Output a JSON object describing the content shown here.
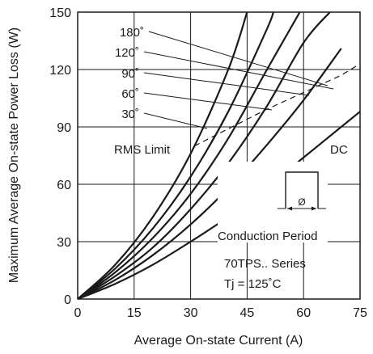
{
  "chart_data": {
    "type": "line",
    "xlabel": "Average On-state Current (A)",
    "ylabel": "Maximum Average On-state Power Loss (W)",
    "xlim": [
      0,
      75
    ],
    "ylim": [
      0,
      150
    ],
    "xticks": [
      0,
      15,
      30,
      45,
      60,
      75
    ],
    "yticks": [
      0,
      30,
      60,
      90,
      120,
      150
    ],
    "grid": true,
    "series": [
      {
        "name": "180°",
        "x": [
          0,
          10,
          20,
          30,
          40,
          45
        ],
        "y": [
          0,
          18,
          43,
          76,
          120,
          150
        ]
      },
      {
        "name": "120°",
        "x": [
          0,
          10,
          20,
          30,
          40,
          50,
          52
        ],
        "y": [
          0,
          16,
          37,
          64,
          98,
          140,
          150
        ]
      },
      {
        "name": "90°",
        "x": [
          0,
          10,
          20,
          30,
          40,
          50,
          59
        ],
        "y": [
          0,
          14,
          32,
          55,
          84,
          119,
          150
        ]
      },
      {
        "name": "60°",
        "x": [
          0,
          10,
          20,
          30,
          40,
          50,
          60,
          67
        ],
        "y": [
          0,
          12,
          27,
          47,
          71,
          100,
          134,
          150
        ]
      },
      {
        "name": "30°",
        "x": [
          0,
          10,
          20,
          30,
          40,
          50,
          60,
          70,
          75
        ],
        "y": [
          0,
          10,
          23,
          39,
          58,
          80,
          104,
          131,
          123
        ]
      },
      {
        "name": "DC",
        "x": [
          0,
          10,
          20,
          30,
          40,
          50,
          60,
          70,
          75
        ],
        "y": [
          0,
          8,
          18,
          30,
          43,
          58,
          74,
          90,
          98
        ]
      },
      {
        "name": "RMS Limit",
        "x": [
          31,
          40,
          50,
          60,
          70,
          75
        ],
        "y": [
          80,
          89,
          99,
          108,
          117,
          123
        ]
      }
    ],
    "annotations": {
      "rms_limit": "RMS Limit",
      "dc": "DC",
      "conduction_period": "Conduction Period",
      "phi": "Ø",
      "series_name": "70TPS.. Series",
      "tj": "Tj = 125˚C",
      "angle_labels": [
        "180˚",
        "120˚",
        "90˚",
        "60˚",
        "30˚"
      ]
    }
  }
}
